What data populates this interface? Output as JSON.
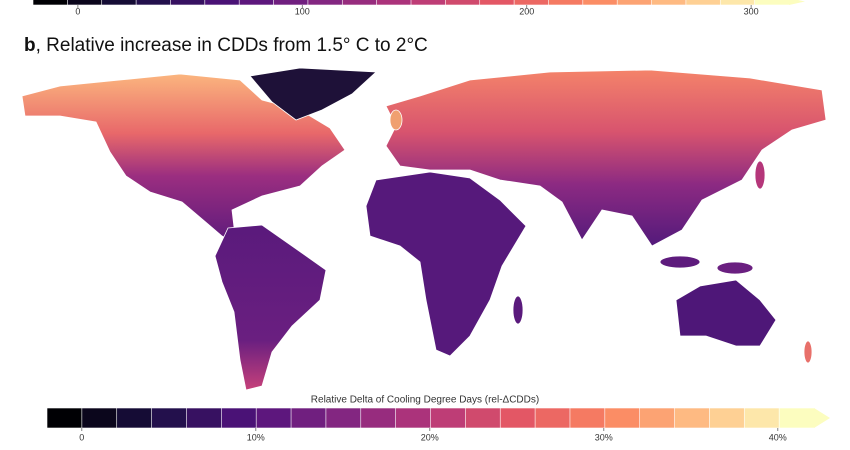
{
  "top_colorbar": {
    "lim": [
      -20,
      324
    ],
    "ticks": [
      0,
      100,
      200,
      300
    ]
  },
  "title": {
    "label": "b",
    "text": ", Relative increase in CDDs from 1.5° C to 2°C"
  },
  "colorbar": {
    "title": "Relative Delta of Cooling Degree Days (rel-ΔCDDs)",
    "lim": [
      -2,
      43
    ],
    "ticks": [
      0,
      {
        "value": 10,
        "label": "10%"
      },
      {
        "value": 20,
        "label": "20%"
      },
      {
        "value": 30,
        "label": "30%"
      },
      {
        "value": 40,
        "label": "40%"
      }
    ]
  }
}
